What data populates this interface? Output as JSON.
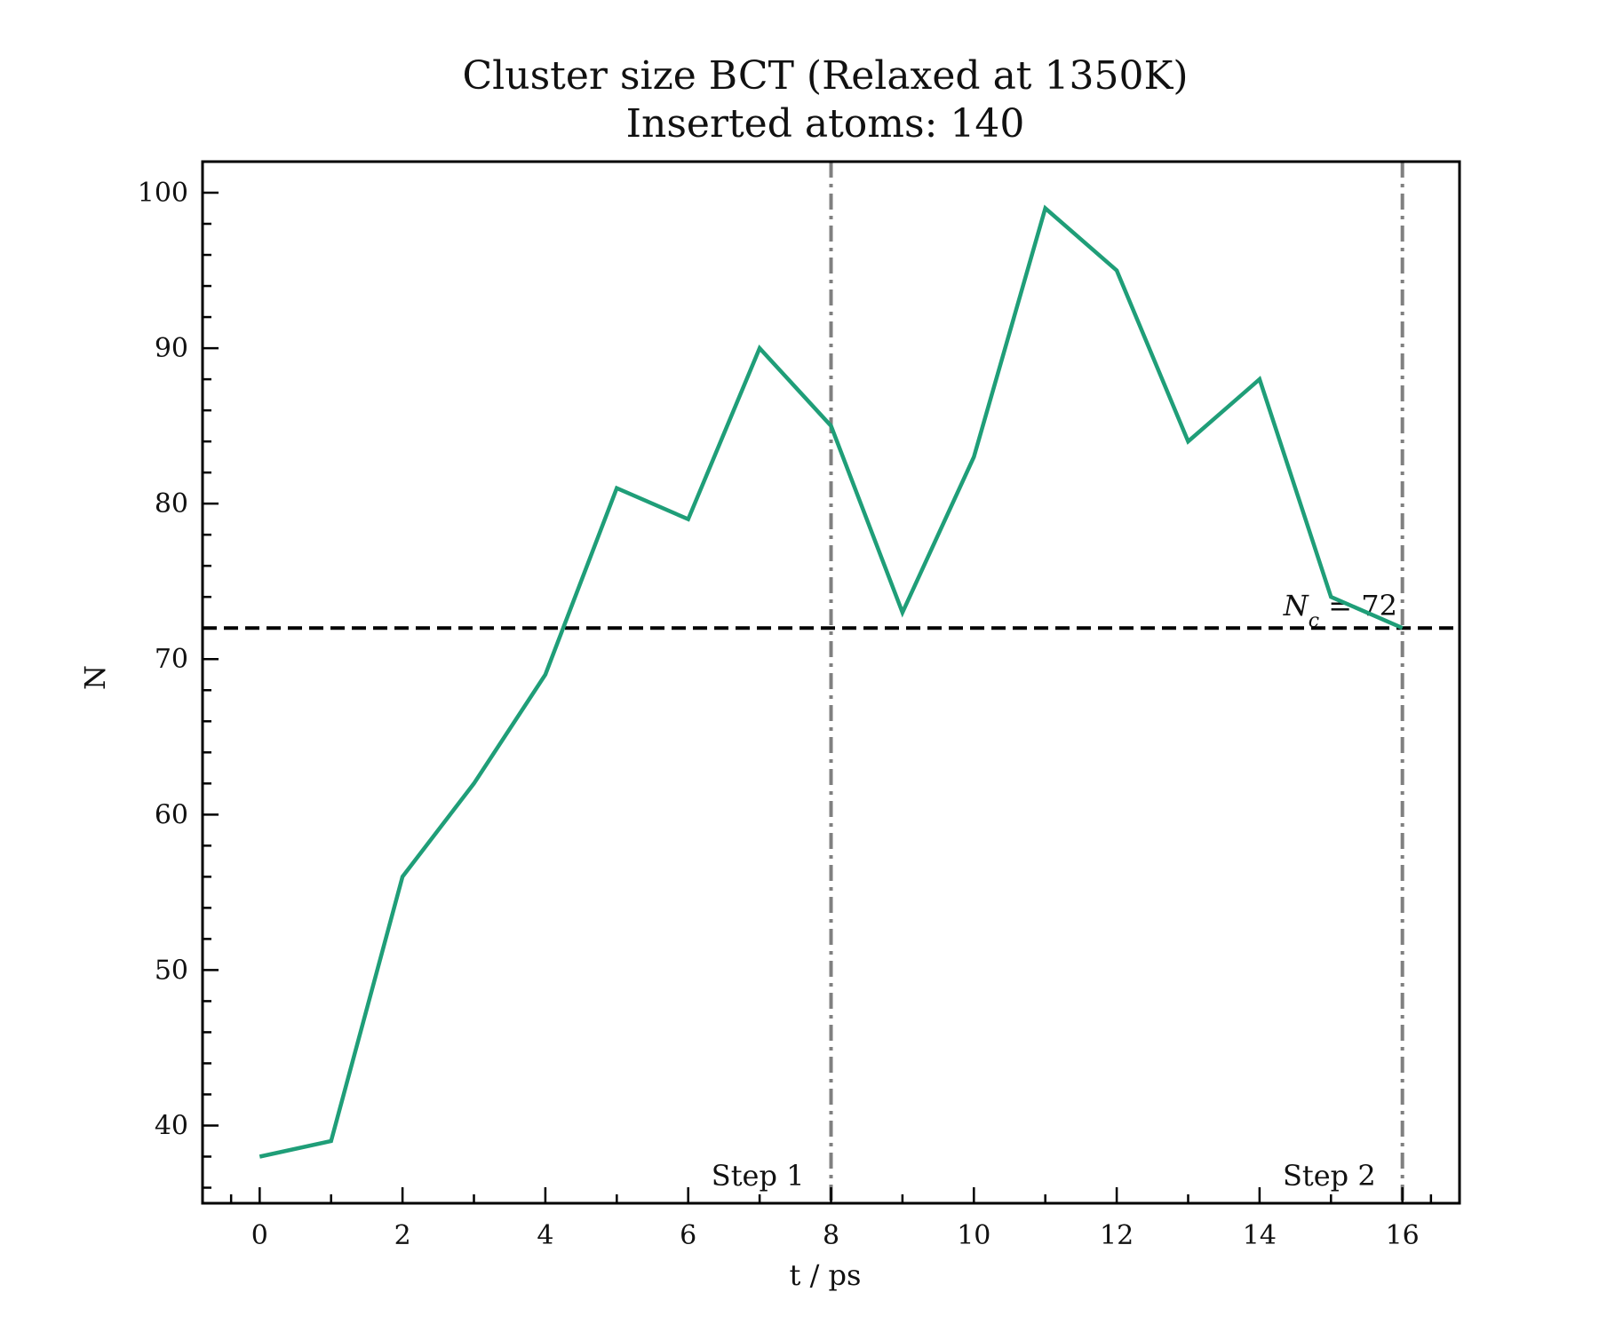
{
  "chart_data": {
    "type": "line",
    "title": "Cluster size BCT (Relaxed at 1350K)",
    "subtitle": "Inserted atoms: 140",
    "xlabel": "t / ps",
    "ylabel": "N",
    "xlim": [
      -0.8,
      16.8
    ],
    "ylim": [
      35,
      102
    ],
    "xticks": [
      0,
      2,
      4,
      6,
      8,
      10,
      12,
      14,
      16
    ],
    "yticks": [
      40,
      50,
      60,
      70,
      80,
      90,
      100
    ],
    "grid": false,
    "series": [
      {
        "color": "#1f9e78",
        "x": [
          0,
          1,
          2,
          3,
          4,
          5,
          6,
          7,
          8,
          9,
          10,
          11,
          12,
          13,
          14,
          15,
          16
        ],
        "y": [
          38,
          39,
          56,
          62,
          69,
          81,
          79,
          90,
          85,
          73,
          83,
          99,
          95,
          84,
          88,
          74,
          72
        ]
      }
    ],
    "hlines": [
      {
        "y": 72,
        "style": "dashed",
        "color": "#000000",
        "label_main": "N",
        "label_sub": "c",
        "label_rest": " = 72"
      }
    ],
    "vlines": [
      {
        "x": 8,
        "style": "dashdot",
        "color": "#808080",
        "label": "Step 1"
      },
      {
        "x": 16,
        "style": "dashdot",
        "color": "#808080",
        "label": "Step 2"
      }
    ]
  }
}
